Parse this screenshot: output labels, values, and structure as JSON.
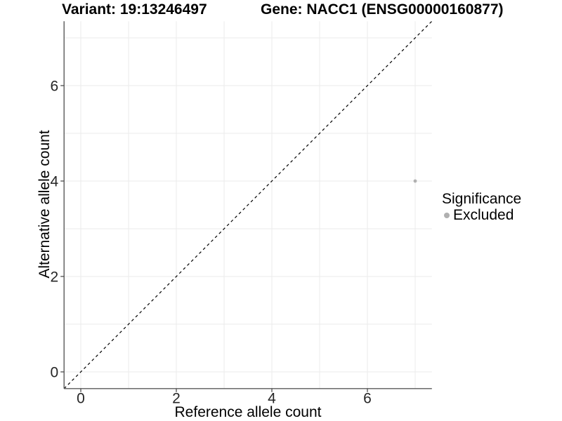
{
  "chart_data": {
    "type": "scatter",
    "title_left": "Variant: 19:13246497",
    "title_right": "Gene: NACC1 (ENSG00000160877)",
    "xlabel": "Reference allele count",
    "ylabel": "Alternative allele count",
    "xlim": [
      -0.35,
      7.35
    ],
    "ylim": [
      -0.35,
      7.35
    ],
    "xticks": [
      0,
      2,
      4,
      6
    ],
    "yticks": [
      0,
      2,
      4,
      6
    ],
    "grid_positions": [
      0,
      1,
      2,
      3,
      4,
      5,
      6,
      7
    ],
    "grid_on": true,
    "reference_line": {
      "kind": "identity",
      "style": "dashed",
      "from": [
        -0.35,
        -0.35
      ],
      "to": [
        7.35,
        7.35
      ],
      "color": "#000000"
    },
    "series": [
      {
        "name": "Excluded",
        "color": "#b0b0b0",
        "points": [
          {
            "x": 7,
            "y": 4
          }
        ]
      }
    ],
    "legend": {
      "title": "Significance",
      "position": "right",
      "items": [
        {
          "label": "Excluded",
          "color": "#b0b0b0"
        }
      ]
    }
  },
  "colors": {
    "background": "#ffffff",
    "grid": "#ebebeb",
    "axis_line": "#595959",
    "tick_mark": "#4d4d4d",
    "tick_label": "#262626",
    "text": "#000000",
    "point": "#b0b0b0"
  }
}
